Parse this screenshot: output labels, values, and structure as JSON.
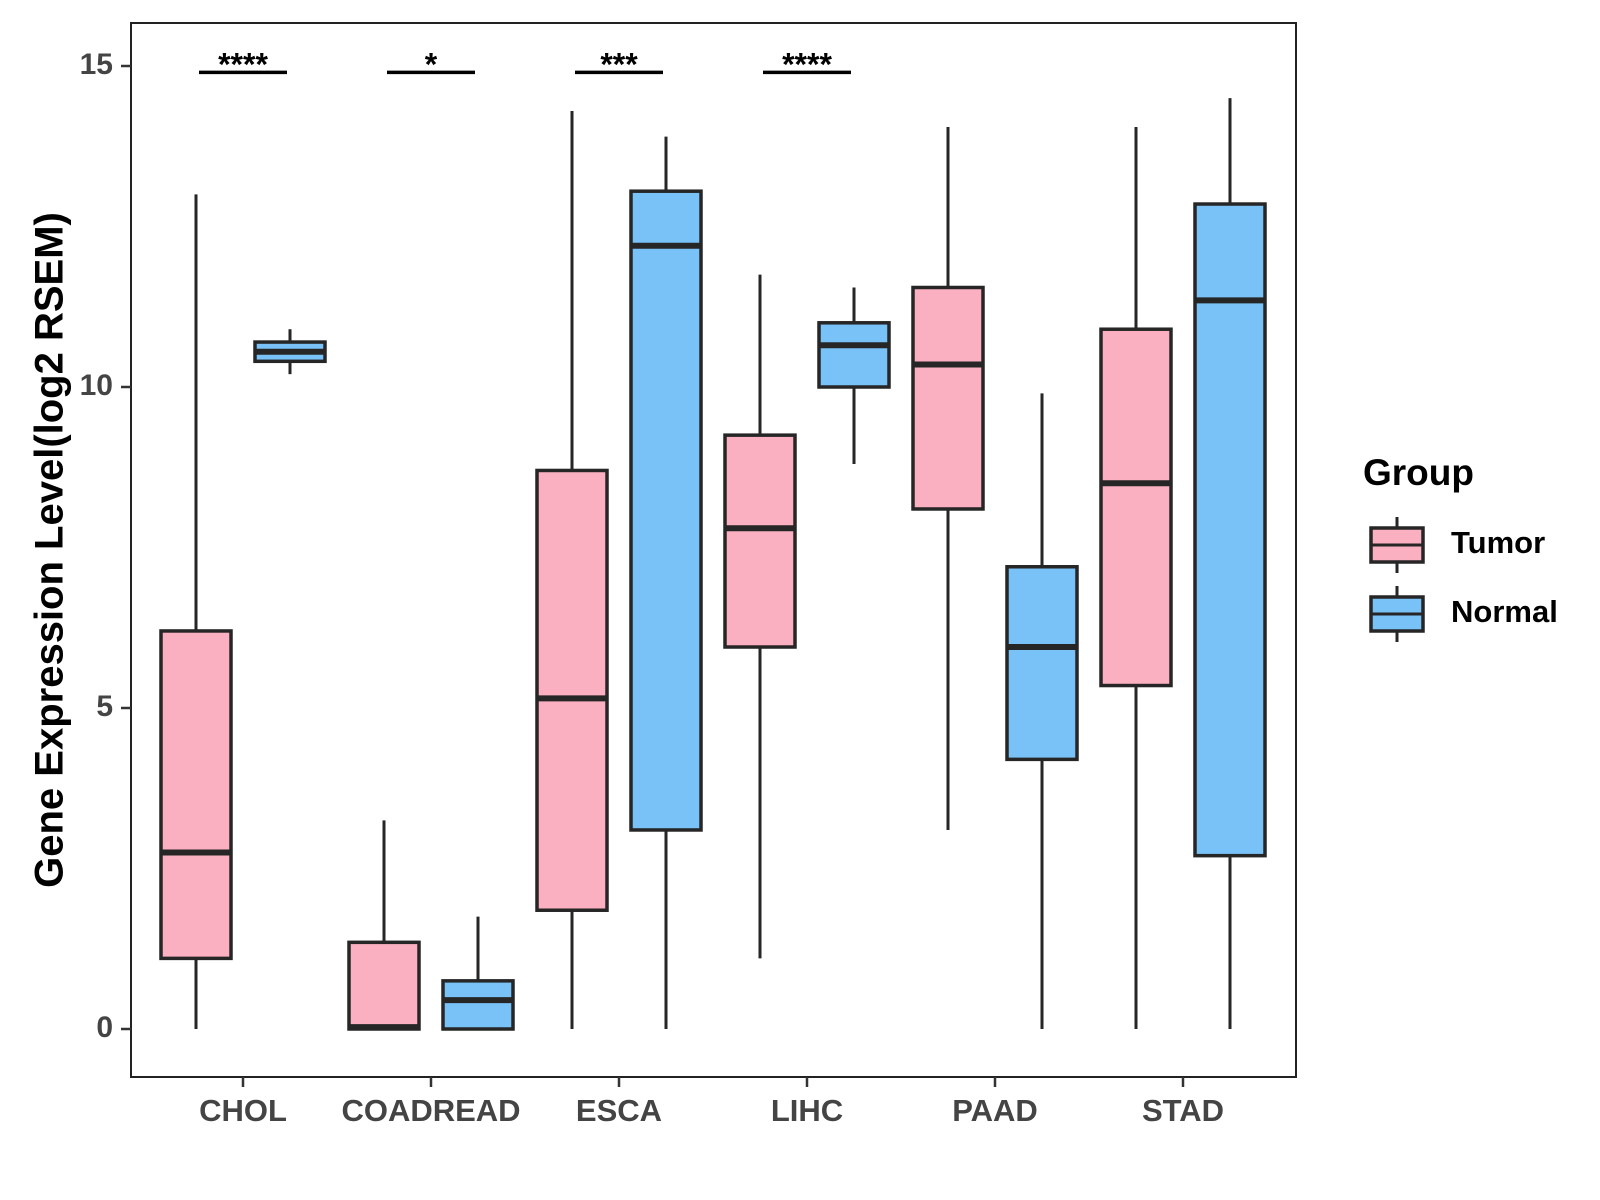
{
  "chart_data": {
    "type": "boxplot",
    "title": "",
    "xlabel": "",
    "ylabel": "Gene Expression Level(log2 RSEM)",
    "ylim": [
      -0.75,
      15.7
    ],
    "yticks": [
      0,
      5,
      10,
      15
    ],
    "grid": false,
    "legend": {
      "title": "Group",
      "placement": "right"
    },
    "categories": [
      "CHOL",
      "COADREAD",
      "ESCA",
      "LIHC",
      "PAAD",
      "STAD"
    ],
    "series": [
      {
        "name": "Tumor",
        "color": "#FBB0C1",
        "boxes": [
          {
            "min": 0.0,
            "q1": 1.1,
            "median": 2.75,
            "q3": 6.2,
            "max": 13.0
          },
          {
            "min": 0.0,
            "q1": 0.0,
            "median": 0.03,
            "q3": 1.35,
            "max": 3.25
          },
          {
            "min": 0.0,
            "q1": 1.85,
            "median": 5.15,
            "q3": 8.7,
            "max": 14.3
          },
          {
            "min": 1.1,
            "q1": 5.95,
            "median": 7.8,
            "q3": 9.25,
            "max": 11.75
          },
          {
            "min": 3.1,
            "q1": 8.1,
            "median": 10.35,
            "q3": 11.55,
            "max": 14.05
          },
          {
            "min": 0.0,
            "q1": 5.35,
            "median": 8.5,
            "q3": 10.9,
            "max": 14.05
          }
        ]
      },
      {
        "name": "Normal",
        "color": "#79C2F8",
        "boxes": [
          {
            "min": 10.2,
            "q1": 10.4,
            "median": 10.55,
            "q3": 10.7,
            "max": 10.9
          },
          {
            "min": 0.0,
            "q1": 0.0,
            "median": 0.45,
            "q3": 0.75,
            "max": 1.75
          },
          {
            "min": 0.0,
            "q1": 3.1,
            "median": 12.2,
            "q3": 13.05,
            "max": 13.9
          },
          {
            "min": 8.8,
            "q1": 10.0,
            "median": 10.65,
            "q3": 11.0,
            "max": 11.55
          },
          {
            "min": 0.0,
            "q1": 4.2,
            "median": 5.95,
            "q3": 7.2,
            "max": 9.9
          },
          {
            "min": 0.0,
            "q1": 2.7,
            "median": 11.35,
            "q3": 12.85,
            "max": 14.5
          }
        ]
      }
    ],
    "significance": [
      {
        "category": "CHOL",
        "label": "****"
      },
      {
        "category": "COADREAD",
        "label": "*"
      },
      {
        "category": "ESCA",
        "label": "***"
      },
      {
        "category": "LIHC",
        "label": "****"
      }
    ],
    "significance_y": 14.9
  }
}
